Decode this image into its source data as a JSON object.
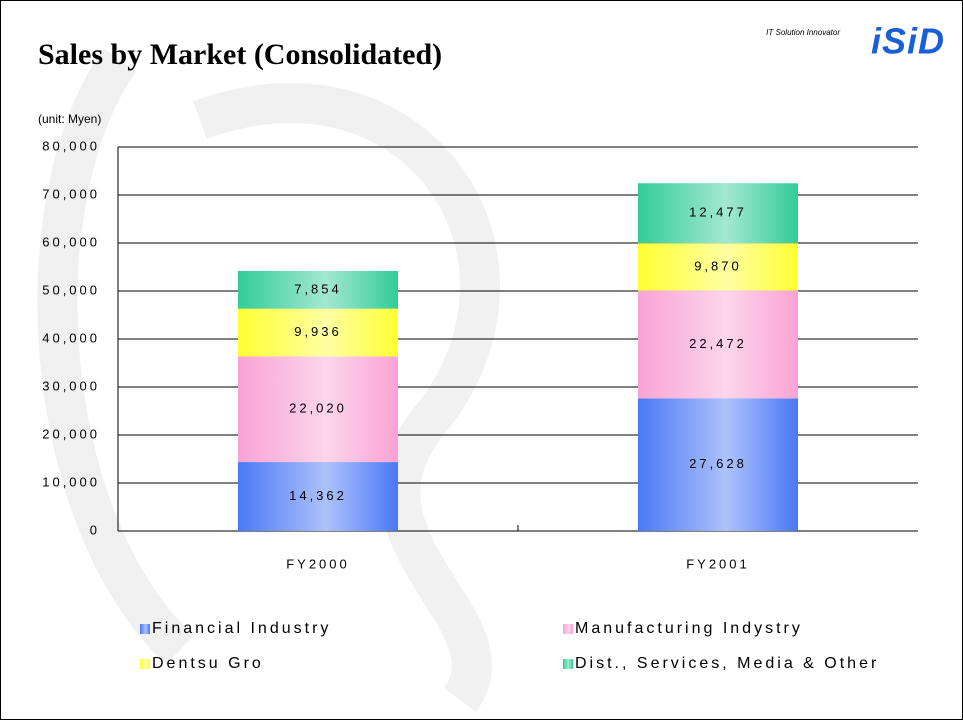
{
  "chart_data": {
    "type": "stacked_bar",
    "title": "Sales by Market (Consolidated)",
    "brand_tagline": "IT Solution Innovator",
    "brand": "iSiD",
    "y_axis_label": "(unit: Myen)",
    "categories": [
      "FY2000",
      "FY2001"
    ],
    "series": [
      {
        "name": "Financial Industry",
        "color": "#4a78f5",
        "values": [
          14362,
          27628
        ],
        "value_labels": [
          "14,362",
          "27,628"
        ]
      },
      {
        "name": "Manufacturing Indystry",
        "color": "#f9a3d4",
        "values": [
          22020,
          22472
        ],
        "value_labels": [
          "22,020",
          "22,472"
        ]
      },
      {
        "name": "Dentsu Gro",
        "color": "#ffff33",
        "values": [
          9936,
          9870
        ],
        "value_labels": [
          "9,936",
          "9,870"
        ]
      },
      {
        "name": "Dist., Services, Media & Other",
        "color": "#33cc99",
        "values": [
          7854,
          12477
        ],
        "value_labels": [
          "7,854",
          "12,477"
        ]
      }
    ],
    "ylim": [
      0,
      80000
    ],
    "yticks": [
      0,
      {
        "value": 10000,
        "label": "10,000"
      },
      {
        "value": 20000,
        "label": "20,000"
      },
      {
        "value": 30000,
        "label": "30,000"
      },
      {
        "value": 40000,
        "label": "40,000"
      },
      {
        "value": 50000,
        "label": "50,000"
      },
      {
        "value": 60000,
        "label": "60,000"
      },
      {
        "value": 70000,
        "label": "70,000"
      },
      {
        "value": 80000,
        "label": "80,000"
      }
    ],
    "grid": true,
    "legend": "bottom"
  }
}
